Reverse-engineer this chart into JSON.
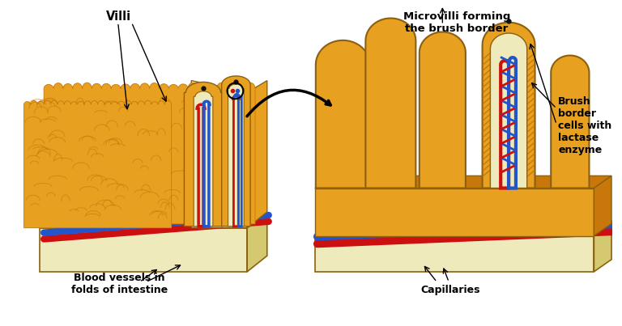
{
  "bg_color": "#ffffff",
  "annotations": {
    "villi_label": "Villi",
    "blood_vessels_label": "Blood vessels in\nfolds of intestine",
    "microvilli_label": "Microvilli forming\nthe brush border",
    "brush_border_label": "Brush\nborder\ncells with\nlactase\nenzyme",
    "capillaries_label": "Capillaries"
  },
  "colors": {
    "golden_orange": "#E8A020",
    "dark_orange": "#C8780A",
    "light_yellow": "#F5F0C0",
    "cream": "#F0EAA0",
    "cream2": "#EEEABB",
    "red_vessel": "#CC1010",
    "blue_vessel": "#2255CC",
    "black": "#000000",
    "outline": "#8B6010",
    "base_tan": "#D4C870",
    "side_tan": "#C8BE60"
  },
  "figsize": [
    7.68,
    4.03
  ],
  "dpi": 100
}
